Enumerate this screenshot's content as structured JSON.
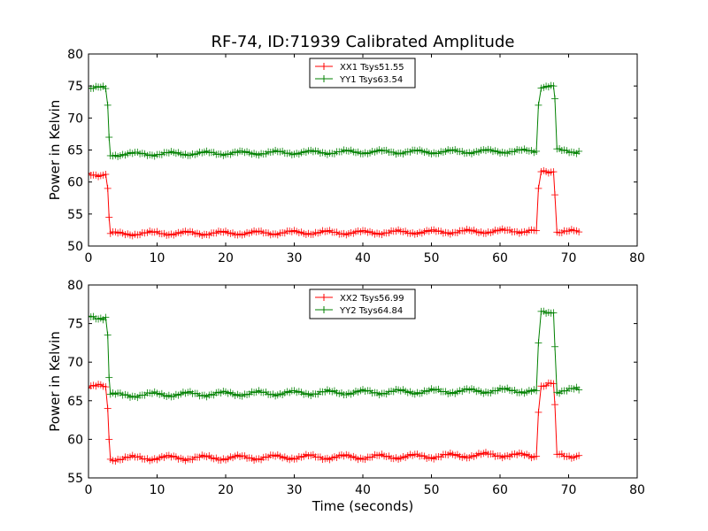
{
  "chart_data": [
    {
      "type": "line",
      "title": "RF-74, ID:71939 Calibrated Amplitude",
      "xlabel": "",
      "ylabel": "Power in Kelvin",
      "xlim": [
        0,
        80
      ],
      "ylim": [
        50,
        80
      ],
      "xticks": [
        0,
        10,
        20,
        30,
        40,
        50,
        60,
        70,
        80
      ],
      "yticks": [
        50,
        55,
        60,
        65,
        70,
        75,
        80
      ],
      "legend_position": "top-center",
      "series": [
        {
          "name": "XX1 Tsys51.55",
          "color": "#ff0000",
          "x": [
            0,
            2.5,
            2.8,
            3.0,
            3.2,
            10,
            20,
            30,
            40,
            50,
            60,
            65.3,
            65.6,
            66.0,
            67.8,
            68.0,
            68.3,
            71.5
          ],
          "y": [
            61.2,
            61.2,
            59.0,
            54.5,
            51.9,
            52.0,
            52.0,
            52.1,
            52.1,
            52.2,
            52.3,
            52.4,
            59.0,
            61.5,
            61.6,
            58.0,
            52.3,
            52.2
          ]
        },
        {
          "name": "YY1 Tsys63.54",
          "color": "#008000",
          "x": [
            0,
            2.5,
            2.8,
            3.0,
            3.2,
            10,
            20,
            30,
            40,
            50,
            60,
            65.3,
            65.6,
            66.0,
            67.8,
            68.0,
            68.3,
            71.5
          ],
          "y": [
            74.7,
            74.6,
            72.0,
            67.0,
            64.3,
            64.4,
            64.5,
            64.6,
            64.7,
            64.7,
            64.8,
            64.8,
            72.0,
            75.0,
            75.0,
            73.0,
            64.9,
            64.8
          ]
        }
      ]
    },
    {
      "type": "line",
      "title": "",
      "xlabel": "Time (seconds)",
      "ylabel": "Power in Kelvin",
      "xlim": [
        0,
        80
      ],
      "ylim": [
        55,
        80
      ],
      "xticks": [
        0,
        10,
        20,
        30,
        40,
        50,
        60,
        70,
        80
      ],
      "yticks": [
        55,
        60,
        65,
        70,
        75,
        80
      ],
      "legend_position": "top-center",
      "series": [
        {
          "name": "XX2 Tsys56.99",
          "color": "#ff0000",
          "x": [
            0,
            2.5,
            2.8,
            3.0,
            3.2,
            10,
            20,
            30,
            40,
            50,
            60,
            65.3,
            65.6,
            66.0,
            67.8,
            68.0,
            68.3,
            71.5
          ],
          "y": [
            66.8,
            66.8,
            64.0,
            60.0,
            57.5,
            57.6,
            57.6,
            57.7,
            57.7,
            57.8,
            58.0,
            57.8,
            63.5,
            67.0,
            67.2,
            64.5,
            57.9,
            57.9
          ]
        },
        {
          "name": "YY2 Tsys64.84",
          "color": "#008000",
          "x": [
            0,
            2.5,
            2.8,
            3.0,
            3.2,
            10,
            20,
            30,
            40,
            50,
            60,
            65.3,
            65.6,
            66.0,
            67.8,
            68.0,
            68.3,
            71.5
          ],
          "y": [
            75.9,
            75.8,
            73.5,
            68.0,
            65.7,
            65.8,
            65.9,
            66.0,
            66.1,
            66.2,
            66.3,
            66.3,
            72.5,
            76.3,
            76.4,
            72.0,
            66.3,
            66.4
          ]
        }
      ]
    }
  ]
}
